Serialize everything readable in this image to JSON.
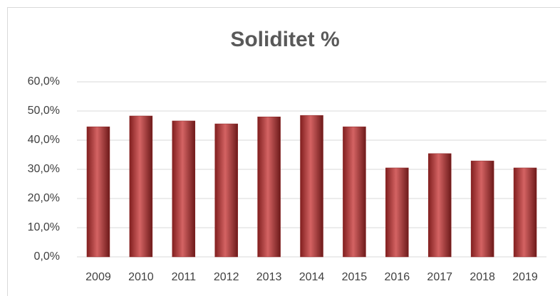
{
  "chart_data": {
    "type": "bar",
    "title": "Soliditet %",
    "categories": [
      "2009",
      "2010",
      "2011",
      "2012",
      "2013",
      "2014",
      "2015",
      "2016",
      "2017",
      "2018",
      "2019"
    ],
    "values": [
      44.6,
      48.3,
      46.6,
      45.6,
      48.0,
      48.5,
      44.6,
      30.5,
      35.4,
      32.9,
      30.5
    ],
    "color": "#c62f2f",
    "ylim": [
      0,
      60
    ],
    "yticks": [
      {
        "value": 0,
        "label": "0,0%"
      },
      {
        "value": 10,
        "label": "10,0%"
      },
      {
        "value": 20,
        "label": "20,0%"
      },
      {
        "value": 30,
        "label": "30,0%"
      },
      {
        "value": 40,
        "label": "40,0%"
      },
      {
        "value": 50,
        "label": "50,0%"
      },
      {
        "value": 60,
        "label": "60,0%"
      }
    ],
    "grid": true
  }
}
